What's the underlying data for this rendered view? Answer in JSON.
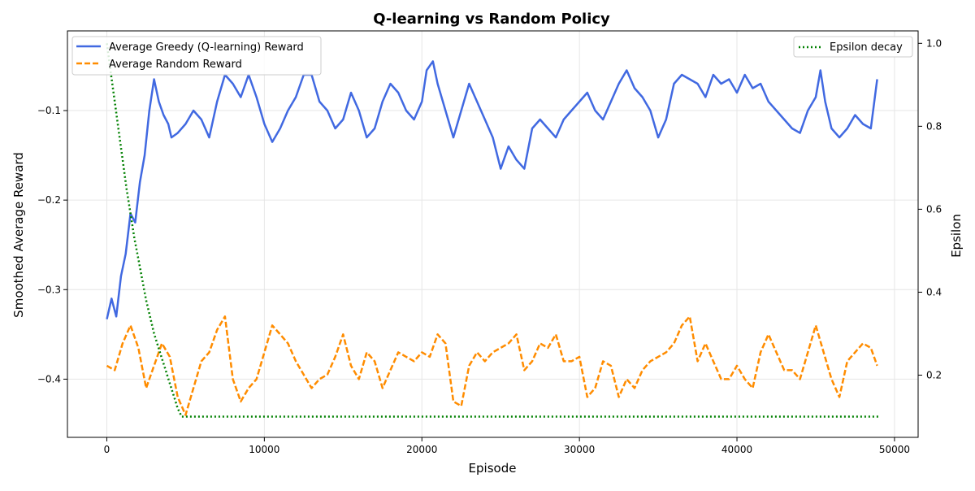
{
  "chart_data": {
    "type": "line",
    "title": "Q-learning vs Random Policy",
    "xlabel": "Episode",
    "ylabel": "Smoothed Average Reward",
    "y2label": "Epsilon",
    "xlim": [
      -2500,
      51500
    ],
    "ylim": [
      -0.465,
      -0.011
    ],
    "y2lim": [
      0.05,
      1.03
    ],
    "grid": true,
    "xticks": [
      0,
      10000,
      20000,
      30000,
      40000,
      50000
    ],
    "yticks": [
      -0.4,
      -0.3,
      -0.2,
      -0.1
    ],
    "y2ticks": [
      0.2,
      0.4,
      0.6,
      0.8,
      1.0
    ],
    "legend_left_position": "top-left",
    "legend_right_position": "top-right",
    "series": [
      {
        "name": "Average Greedy (Q-learning) Reward",
        "axis": "left",
        "color": "#4169e1",
        "style": "solid",
        "points": [
          [
            0,
            -0.333
          ],
          [
            300,
            -0.31
          ],
          [
            600,
            -0.33
          ],
          [
            900,
            -0.285
          ],
          [
            1200,
            -0.26
          ],
          [
            1500,
            -0.215
          ],
          [
            1800,
            -0.225
          ],
          [
            2100,
            -0.18
          ],
          [
            2400,
            -0.15
          ],
          [
            2700,
            -0.1
          ],
          [
            3000,
            -0.065
          ],
          [
            3300,
            -0.09
          ],
          [
            3600,
            -0.105
          ],
          [
            3900,
            -0.115
          ],
          [
            4100,
            -0.13
          ],
          [
            4500,
            -0.125
          ],
          [
            5000,
            -0.115
          ],
          [
            5500,
            -0.1
          ],
          [
            6000,
            -0.11
          ],
          [
            6500,
            -0.13
          ],
          [
            7000,
            -0.09
          ],
          [
            7500,
            -0.06
          ],
          [
            8000,
            -0.07
          ],
          [
            8500,
            -0.085
          ],
          [
            9000,
            -0.06
          ],
          [
            9500,
            -0.085
          ],
          [
            10000,
            -0.115
          ],
          [
            10500,
            -0.135
          ],
          [
            11000,
            -0.12
          ],
          [
            11500,
            -0.1
          ],
          [
            12000,
            -0.085
          ],
          [
            12500,
            -0.06
          ],
          [
            13000,
            -0.06
          ],
          [
            13500,
            -0.09
          ],
          [
            14000,
            -0.1
          ],
          [
            14500,
            -0.12
          ],
          [
            15000,
            -0.11
          ],
          [
            15500,
            -0.08
          ],
          [
            16000,
            -0.1
          ],
          [
            16500,
            -0.13
          ],
          [
            17000,
            -0.12
          ],
          [
            17500,
            -0.09
          ],
          [
            18000,
            -0.07
          ],
          [
            18500,
            -0.08
          ],
          [
            19000,
            -0.1
          ],
          [
            19500,
            -0.11
          ],
          [
            20000,
            -0.09
          ],
          [
            20300,
            -0.055
          ],
          [
            20700,
            -0.045
          ],
          [
            21000,
            -0.07
          ],
          [
            21500,
            -0.1
          ],
          [
            22000,
            -0.13
          ],
          [
            22500,
            -0.1
          ],
          [
            23000,
            -0.07
          ],
          [
            23500,
            -0.09
          ],
          [
            24000,
            -0.11
          ],
          [
            24500,
            -0.13
          ],
          [
            25000,
            -0.165
          ],
          [
            25500,
            -0.14
          ],
          [
            26000,
            -0.155
          ],
          [
            26500,
            -0.165
          ],
          [
            27000,
            -0.12
          ],
          [
            27500,
            -0.11
          ],
          [
            28000,
            -0.12
          ],
          [
            28500,
            -0.13
          ],
          [
            29000,
            -0.11
          ],
          [
            29500,
            -0.1
          ],
          [
            30000,
            -0.09
          ],
          [
            30500,
            -0.08
          ],
          [
            31000,
            -0.1
          ],
          [
            31500,
            -0.11
          ],
          [
            32000,
            -0.09
          ],
          [
            32500,
            -0.07
          ],
          [
            33000,
            -0.055
          ],
          [
            33500,
            -0.075
          ],
          [
            34000,
            -0.085
          ],
          [
            34500,
            -0.1
          ],
          [
            35000,
            -0.13
          ],
          [
            35500,
            -0.11
          ],
          [
            36000,
            -0.07
          ],
          [
            36500,
            -0.06
          ],
          [
            37000,
            -0.065
          ],
          [
            37500,
            -0.07
          ],
          [
            38000,
            -0.085
          ],
          [
            38500,
            -0.06
          ],
          [
            39000,
            -0.07
          ],
          [
            39500,
            -0.065
          ],
          [
            40000,
            -0.08
          ],
          [
            40500,
            -0.06
          ],
          [
            41000,
            -0.075
          ],
          [
            41500,
            -0.07
          ],
          [
            42000,
            -0.09
          ],
          [
            42500,
            -0.1
          ],
          [
            43000,
            -0.11
          ],
          [
            43500,
            -0.12
          ],
          [
            44000,
            -0.125
          ],
          [
            44500,
            -0.1
          ],
          [
            45000,
            -0.085
          ],
          [
            45300,
            -0.055
          ],
          [
            45600,
            -0.09
          ],
          [
            46000,
            -0.12
          ],
          [
            46500,
            -0.13
          ],
          [
            47000,
            -0.12
          ],
          [
            47500,
            -0.105
          ],
          [
            48000,
            -0.115
          ],
          [
            48500,
            -0.12
          ],
          [
            48900,
            -0.065
          ]
        ]
      },
      {
        "name": "Average Random Reward",
        "axis": "left",
        "color": "#ff8c00",
        "style": "dashed",
        "points": [
          [
            0,
            -0.385
          ],
          [
            500,
            -0.39
          ],
          [
            1000,
            -0.36
          ],
          [
            1500,
            -0.34
          ],
          [
            2000,
            -0.365
          ],
          [
            2500,
            -0.41
          ],
          [
            3000,
            -0.385
          ],
          [
            3500,
            -0.36
          ],
          [
            4000,
            -0.375
          ],
          [
            4500,
            -0.42
          ],
          [
            5000,
            -0.44
          ],
          [
            5500,
            -0.41
          ],
          [
            6000,
            -0.38
          ],
          [
            6500,
            -0.37
          ],
          [
            7000,
            -0.345
          ],
          [
            7500,
            -0.33
          ],
          [
            8000,
            -0.4
          ],
          [
            8500,
            -0.425
          ],
          [
            9000,
            -0.41
          ],
          [
            9500,
            -0.4
          ],
          [
            10000,
            -0.37
          ],
          [
            10500,
            -0.34
          ],
          [
            11000,
            -0.35
          ],
          [
            11500,
            -0.36
          ],
          [
            12000,
            -0.38
          ],
          [
            12500,
            -0.395
          ],
          [
            13000,
            -0.41
          ],
          [
            13500,
            -0.4
          ],
          [
            14000,
            -0.395
          ],
          [
            14500,
            -0.375
          ],
          [
            15000,
            -0.35
          ],
          [
            15500,
            -0.385
          ],
          [
            16000,
            -0.4
          ],
          [
            16500,
            -0.37
          ],
          [
            17000,
            -0.38
          ],
          [
            17500,
            -0.41
          ],
          [
            18000,
            -0.39
          ],
          [
            18500,
            -0.37
          ],
          [
            19000,
            -0.375
          ],
          [
            19500,
            -0.38
          ],
          [
            20000,
            -0.37
          ],
          [
            20500,
            -0.375
          ],
          [
            21000,
            -0.35
          ],
          [
            21500,
            -0.36
          ],
          [
            22000,
            -0.425
          ],
          [
            22500,
            -0.43
          ],
          [
            23000,
            -0.385
          ],
          [
            23500,
            -0.37
          ],
          [
            24000,
            -0.38
          ],
          [
            24500,
            -0.37
          ],
          [
            25000,
            -0.365
          ],
          [
            25500,
            -0.36
          ],
          [
            26000,
            -0.35
          ],
          [
            26500,
            -0.39
          ],
          [
            27000,
            -0.38
          ],
          [
            27500,
            -0.36
          ],
          [
            28000,
            -0.365
          ],
          [
            28500,
            -0.35
          ],
          [
            29000,
            -0.38
          ],
          [
            29500,
            -0.38
          ],
          [
            30000,
            -0.375
          ],
          [
            30500,
            -0.42
          ],
          [
            31000,
            -0.41
          ],
          [
            31500,
            -0.38
          ],
          [
            32000,
            -0.385
          ],
          [
            32500,
            -0.42
          ],
          [
            33000,
            -0.4
          ],
          [
            33500,
            -0.41
          ],
          [
            34000,
            -0.39
          ],
          [
            34500,
            -0.38
          ],
          [
            35000,
            -0.375
          ],
          [
            35500,
            -0.37
          ],
          [
            36000,
            -0.36
          ],
          [
            36500,
            -0.34
          ],
          [
            37000,
            -0.33
          ],
          [
            37500,
            -0.38
          ],
          [
            38000,
            -0.36
          ],
          [
            38500,
            -0.38
          ],
          [
            39000,
            -0.4
          ],
          [
            39500,
            -0.4
          ],
          [
            40000,
            -0.385
          ],
          [
            40500,
            -0.4
          ],
          [
            41000,
            -0.41
          ],
          [
            41500,
            -0.37
          ],
          [
            42000,
            -0.35
          ],
          [
            42500,
            -0.37
          ],
          [
            43000,
            -0.39
          ],
          [
            43500,
            -0.39
          ],
          [
            44000,
            -0.4
          ],
          [
            44500,
            -0.37
          ],
          [
            45000,
            -0.34
          ],
          [
            45500,
            -0.37
          ],
          [
            46000,
            -0.4
          ],
          [
            46500,
            -0.42
          ],
          [
            47000,
            -0.38
          ],
          [
            47500,
            -0.37
          ],
          [
            48000,
            -0.36
          ],
          [
            48500,
            -0.365
          ],
          [
            48900,
            -0.385
          ]
        ]
      },
      {
        "name": "Epsilon decay",
        "axis": "right",
        "color": "#008000",
        "style": "dotted",
        "points": [
          [
            0,
            1.0
          ],
          [
            250,
            0.93
          ],
          [
            500,
            0.86
          ],
          [
            750,
            0.79
          ],
          [
            1000,
            0.72
          ],
          [
            1250,
            0.65
          ],
          [
            1500,
            0.59
          ],
          [
            1750,
            0.53
          ],
          [
            2000,
            0.48
          ],
          [
            2250,
            0.43
          ],
          [
            2500,
            0.38
          ],
          [
            2750,
            0.34
          ],
          [
            3000,
            0.3
          ],
          [
            3250,
            0.27
          ],
          [
            3500,
            0.24
          ],
          [
            3750,
            0.21
          ],
          [
            4000,
            0.18
          ],
          [
            4250,
            0.15
          ],
          [
            4500,
            0.12
          ],
          [
            4750,
            0.1
          ],
          [
            49000,
            0.1
          ]
        ]
      }
    ]
  }
}
